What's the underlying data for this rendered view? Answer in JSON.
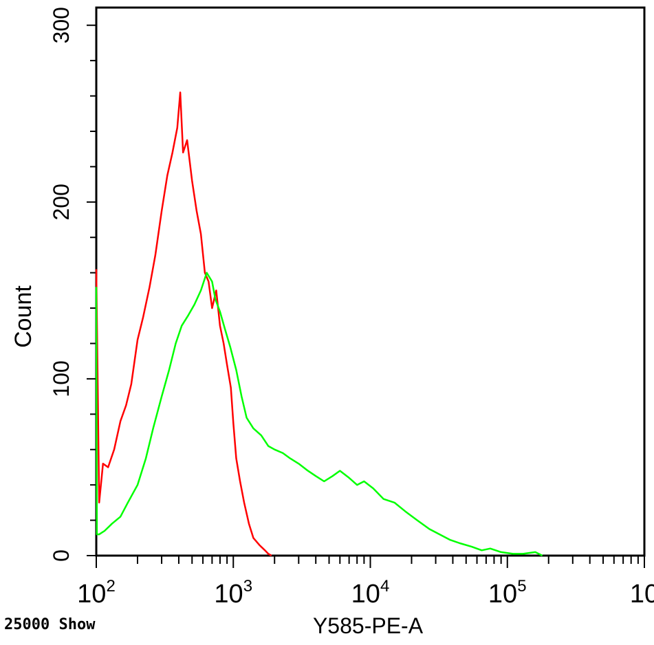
{
  "chart_data": {
    "type": "line",
    "title": "",
    "xlabel": "Y585-PE-A",
    "ylabel": "Count",
    "x_scale": "log",
    "xlim": [
      100,
      1000000
    ],
    "ylim": [
      0,
      310
    ],
    "x_tick_values": [
      100,
      1000,
      10000,
      100000,
      1000000
    ],
    "x_tick_labels": [
      {
        "base": "10",
        "exp": "2"
      },
      {
        "base": "10",
        "exp": "3"
      },
      {
        "base": "10",
        "exp": "4"
      },
      {
        "base": "10",
        "exp": "5"
      },
      {
        "base": "10",
        "exp": ""
      }
    ],
    "y_tick_values": [
      0,
      100,
      200,
      300
    ],
    "y_tick_labels": [
      "0",
      "100",
      "200",
      "300"
    ],
    "grid": false,
    "series": [
      {
        "color": "#ff0000",
        "x": [
          100,
          105,
          112,
          122,
          135,
          150,
          165,
          180,
          200,
          220,
          245,
          270,
          300,
          330,
          360,
          390,
          410,
          430,
          460,
          500,
          540,
          580,
          620,
          660,
          700,
          750,
          800,
          850,
          900,
          960,
          1000,
          1050,
          1120,
          1200,
          1300,
          1400,
          1550,
          1700,
          1800,
          1900
        ],
        "y": [
          162,
          30,
          52,
          50,
          60,
          76,
          85,
          97,
          122,
          135,
          152,
          170,
          195,
          215,
          228,
          242,
          262,
          228,
          235,
          212,
          195,
          182,
          160,
          155,
          140,
          150,
          130,
          120,
          108,
          95,
          75,
          55,
          42,
          30,
          18,
          10,
          6,
          3,
          1,
          0
        ]
      },
      {
        "color": "#00ff00",
        "x": [
          100,
          101,
          105,
          115,
          130,
          150,
          170,
          200,
          230,
          260,
          300,
          340,
          380,
          420,
          470,
          520,
          580,
          640,
          700,
          740,
          800,
          870,
          950,
          1050,
          1150,
          1250,
          1400,
          1600,
          1800,
          2000,
          2300,
          2600,
          3000,
          3500,
          4000,
          4600,
          5300,
          6000,
          7000,
          8000,
          9000,
          10500,
          12500,
          15000,
          18000,
          22000,
          27000,
          32000,
          38000,
          45000,
          55000,
          65000,
          75000,
          90000,
          110000,
          130000,
          160000,
          180000
        ],
        "y": [
          152,
          12,
          12,
          14,
          18,
          22,
          30,
          40,
          55,
          72,
          90,
          105,
          120,
          130,
          136,
          142,
          150,
          160,
          155,
          145,
          138,
          128,
          118,
          105,
          90,
          78,
          72,
          68,
          62,
          60,
          58,
          55,
          52,
          48,
          45,
          42,
          45,
          48,
          44,
          40,
          42,
          38,
          32,
          30,
          25,
          20,
          15,
          12,
          9,
          7,
          5,
          3,
          4,
          2,
          1,
          1,
          2,
          0
        ]
      }
    ]
  },
  "footer_note": "25000 Show"
}
